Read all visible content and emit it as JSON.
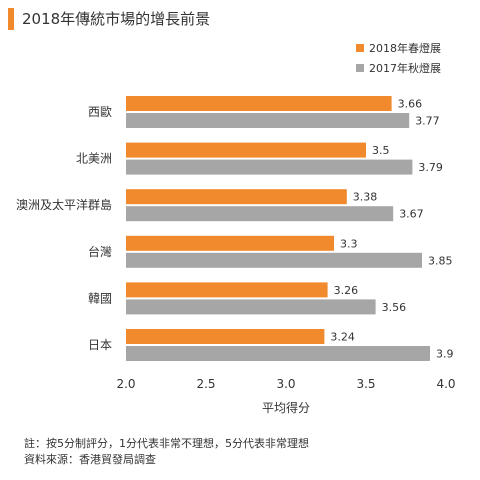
{
  "title": "2018年傳統市場的增長前景",
  "notes": {
    "note": "註：按5分制評分，1分代表非常不理想，5分代表非常理想",
    "source": "資料來源：香港貿發局調查"
  },
  "colors": {
    "series_2018": "#f08a2c",
    "series_2017": "#a6a6a6",
    "accent": "#f08a2c"
  },
  "chart_data": {
    "type": "bar",
    "orientation": "horizontal",
    "categories": [
      "西歐",
      "北美洲",
      "澳洲及太平洋群島",
      "台灣",
      "韓國",
      "日本"
    ],
    "series": [
      {
        "name": "2018年春燈展",
        "values": [
          3.66,
          3.5,
          3.38,
          3.3,
          3.26,
          3.24
        ]
      },
      {
        "name": "2017年秋燈展",
        "values": [
          3.77,
          3.79,
          3.67,
          3.85,
          3.56,
          3.9
        ]
      }
    ],
    "xlabel": "平均得分",
    "ylabel": "",
    "xlim": [
      2.0,
      4.0
    ],
    "xticks": [
      "2.0",
      "2.5",
      "3.0",
      "3.5",
      "4.0"
    ],
    "legend_position": "top-right",
    "grid": false
  }
}
